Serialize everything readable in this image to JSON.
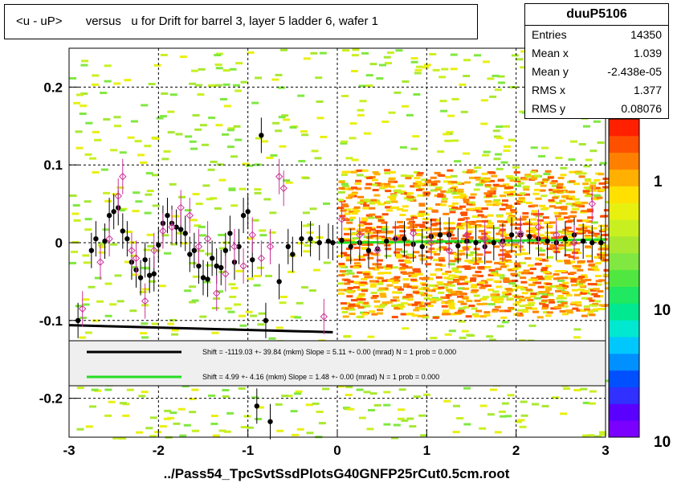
{
  "title": "<u - uP>       versus   u for Drift for barrel 3, layer 5 ladder 6, wafer 1",
  "stats": {
    "name": "duuP5106",
    "rows": [
      {
        "label": "Entries",
        "value": "14350"
      },
      {
        "label": "Mean x",
        "value": "1.039"
      },
      {
        "label": "Mean y",
        "value": "-2.438e-05"
      },
      {
        "label": "RMS x",
        "value": "1.377"
      },
      {
        "label": "RMS y",
        "value": "0.08076"
      }
    ]
  },
  "footer": "../Pass54_TpcSvtSsdPlotsG40GNFP25rCut0.5cm.root",
  "legend": [
    {
      "color": "#000000",
      "text": "Shift = -1119.03 +- 39.84 (mkm) Slope =     5.11 +- 0.00 (mrad)  N = 1 prob = 0.000"
    },
    {
      "color": "#22dd22",
      "text": "Shift =     4.99 +- 4.16 (mkm) Slope =     1.48 +- 0.00 (mrad)  N = 1 prob = 0.000"
    }
  ],
  "colorbar": {
    "labels": [
      "1",
      "10",
      "10"
    ],
    "colors": [
      "#7a00ff",
      "#5a00ff",
      "#3030ff",
      "#0050ff",
      "#0090ff",
      "#00c8ff",
      "#00e8d0",
      "#00e890",
      "#20e860",
      "#50e840",
      "#80e840",
      "#a8e830",
      "#c8f020",
      "#e8f010",
      "#ffe000",
      "#ffb000",
      "#ff8000",
      "#ff5000",
      "#ff2000"
    ]
  },
  "chart_data": {
    "type": "scatter",
    "title": "<u - uP>       versus   u for Drift for barrel 3, layer 5 ladder 6, wafer 1",
    "xlabel": "",
    "ylabel": "",
    "xlim": [
      -3,
      3
    ],
    "ylim": [
      -0.25,
      0.25
    ],
    "x_ticks": [
      -3,
      -2,
      -1,
      0,
      1,
      2,
      3
    ],
    "y_ticks": [
      -0.2,
      -0.1,
      0,
      0.1,
      0.2
    ],
    "x_tick_labels": [
      "-3",
      "-2",
      "-1",
      "0",
      "1",
      "2",
      "3"
    ],
    "y_tick_labels": [
      "-0.2",
      "-0.1",
      "0",
      "0.1",
      "0.2"
    ],
    "grid": true,
    "series": [
      {
        "marker": "filled-circle",
        "color": "#000000",
        "x": [
          -2.9,
          -2.75,
          -2.7,
          -2.6,
          -2.55,
          -2.5,
          -2.45,
          -2.4,
          -2.35,
          -2.3,
          -2.25,
          -2.2,
          -2.15,
          -2.1,
          -2.05,
          -2.0,
          -1.95,
          -1.9,
          -1.85,
          -1.8,
          -1.75,
          -1.7,
          -1.65,
          -1.6,
          -1.55,
          -1.5,
          -1.45,
          -1.4,
          -1.35,
          -1.3,
          -1.25,
          -1.2,
          -1.15,
          -1.1,
          -1.05,
          -1.0,
          -0.95,
          -0.9,
          -0.85,
          -0.8,
          -0.75,
          -0.65,
          -0.55,
          -0.5,
          -0.4,
          -0.3,
          -0.2,
          -0.1,
          -0.05,
          0.05,
          0.15,
          0.25,
          0.35,
          0.45,
          0.55,
          0.65,
          0.75,
          0.85,
          0.95,
          1.05,
          1.15,
          1.25,
          1.35,
          1.45,
          1.55,
          1.65,
          1.75,
          1.85,
          1.95,
          2.05,
          2.15,
          2.25,
          2.35,
          2.45,
          2.55,
          2.65,
          2.75,
          2.85,
          2.95
        ],
        "y": [
          -0.1,
          -0.01,
          0.005,
          0.002,
          0.035,
          0.04,
          0.045,
          0.015,
          0.005,
          -0.025,
          -0.035,
          -0.045,
          -0.022,
          -0.042,
          -0.04,
          -0.003,
          0.025,
          0.035,
          0.025,
          0.02,
          0.017,
          0.012,
          -0.015,
          -0.01,
          -0.03,
          -0.045,
          -0.047,
          -0.02,
          -0.03,
          -0.032,
          -0.01,
          0.012,
          -0.025,
          -0.005,
          0.035,
          0.04,
          -0.022,
          -0.21,
          0.138,
          -0.1,
          -0.23,
          -0.05,
          -0.005,
          -0.015,
          0.005,
          0.005,
          0.0,
          0.002,
          0.0,
          0.003,
          -0.005,
          0.0,
          -0.01,
          -0.008,
          0.002,
          0.005,
          0.005,
          -0.002,
          -0.005,
          0.008,
          0.01,
          0.01,
          -0.004,
          0.002,
          0.0,
          -0.005,
          0.0,
          0.002,
          0.01,
          0.01,
          0.008,
          0.005,
          0.002,
          0.0,
          0.005,
          0.01,
          0.002,
          0.0,
          0.0
        ]
      },
      {
        "marker": "open-diamond",
        "color": "#cc3399",
        "x": [
          -2.85,
          -2.65,
          -2.55,
          -2.45,
          -2.4,
          -2.3,
          -2.25,
          -2.15,
          -2.05,
          -1.95,
          -1.85,
          -1.75,
          -1.65,
          -1.55,
          -1.45,
          -1.35,
          -1.25,
          -1.15,
          -1.05,
          -0.95,
          -0.85,
          -0.75,
          -0.65,
          -0.6,
          -0.15,
          0.05,
          0.25,
          0.45,
          0.65,
          0.85,
          1.05,
          1.25,
          1.45,
          1.65,
          1.85,
          2.05,
          2.25,
          2.45,
          2.65,
          2.85
        ],
        "y": [
          -0.085,
          -0.025,
          0.005,
          0.06,
          0.085,
          -0.01,
          -0.02,
          -0.075,
          -0.01,
          0.015,
          0.02,
          0.045,
          0.035,
          -0.005,
          0.005,
          -0.065,
          -0.04,
          -0.005,
          -0.03,
          0.01,
          -0.02,
          -0.005,
          0.085,
          0.07,
          -0.095,
          0.03,
          0.01,
          -0.01,
          0.005,
          0.012,
          0.0,
          -0.01,
          0.01,
          0.005,
          -0.002,
          0.012,
          0.02,
          0.01,
          0.0,
          0.05
        ]
      }
    ],
    "fit_lines": [
      {
        "name": "",
        "color": "#000000",
        "x": [
          -3,
          -0.05
        ],
        "y": [
          -0.106,
          -0.115
        ]
      },
      {
        "name": "",
        "color": "#22dd22",
        "x": [
          0,
          3
        ],
        "y": [
          0.0,
          0.004
        ]
      }
    ]
  }
}
